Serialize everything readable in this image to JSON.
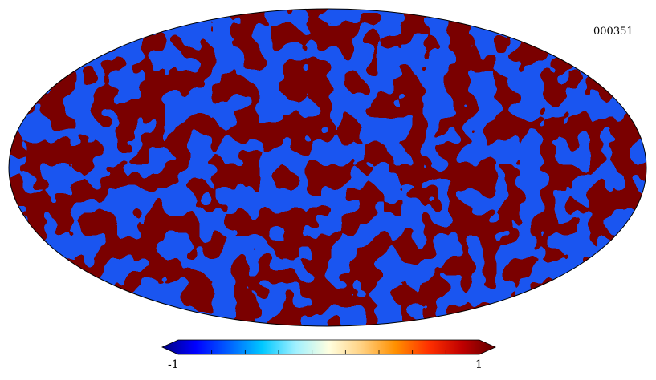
{
  "map": {
    "label": "000351",
    "projection": "mollweide",
    "colors": {
      "high": "#7a0000",
      "low": "#1a55f0",
      "highlight": "#ff5a1f",
      "accent": "#00d8ff"
    }
  },
  "colorbar": {
    "min_label": "-1",
    "max_label": "1",
    "min_value": -1,
    "max_value": 1,
    "colormap": [
      "#000080",
      "#0000ff",
      "#0060ff",
      "#00c8ff",
      "#9ff0ff",
      "#ffffe0",
      "#ffd080",
      "#ff9000",
      "#ff3000",
      "#c00000",
      "#600000"
    ]
  }
}
